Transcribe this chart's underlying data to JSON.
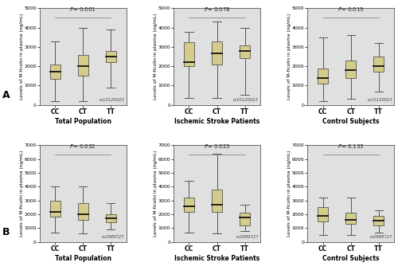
{
  "fig_facecolor": "#ffffff",
  "background_color": "#e0e0e0",
  "box_color": "#d4cc8a",
  "box_edge_color": "#555555",
  "median_color": "#111111",
  "whisker_color": "#555555",
  "rows": [
    {
      "row_label": "A",
      "p_values": [
        "P = 0.001",
        "P = 0.078",
        "P = 0.019"
      ],
      "snp_label": "rs10120023",
      "titles": [
        "Total Population",
        "Ischemic Stroke Patients",
        "Control Subjects"
      ],
      "ylabel": "Levels of M-ficolin in plasma (ng/mL)",
      "ylim": [
        0,
        5000
      ],
      "yticks": [
        0,
        1000,
        2000,
        3000,
        4000,
        5000
      ],
      "yticklabels": [
        "0",
        "1000",
        "2000",
        "3000",
        "4000",
        "5000"
      ],
      "groups": [
        "CC",
        "CT",
        "TT"
      ],
      "boxes": [
        [
          {
            "whisker_low": 200,
            "q1": 1350,
            "median": 1700,
            "q3": 2100,
            "whisker_high": 3300
          },
          {
            "whisker_low": 200,
            "q1": 1500,
            "median": 2000,
            "q3": 2600,
            "whisker_high": 4000
          },
          {
            "whisker_low": 900,
            "q1": 2200,
            "median": 2500,
            "q3": 2800,
            "whisker_high": 3900
          }
        ],
        [
          {
            "whisker_low": 350,
            "q1": 2000,
            "median": 2200,
            "q3": 3250,
            "whisker_high": 3800
          },
          {
            "whisker_low": 350,
            "q1": 2100,
            "median": 2650,
            "q3": 3300,
            "whisker_high": 4300
          },
          {
            "whisker_low": 500,
            "q1": 2400,
            "median": 2800,
            "q3": 3100,
            "whisker_high": 4000
          }
        ],
        [
          {
            "whisker_low": 200,
            "q1": 1100,
            "median": 1400,
            "q3": 1900,
            "whisker_high": 3500
          },
          {
            "whisker_low": 300,
            "q1": 1400,
            "median": 1800,
            "q3": 2300,
            "whisker_high": 3600
          },
          {
            "whisker_low": 700,
            "q1": 1700,
            "median": 2000,
            "q3": 2500,
            "whisker_high": 3200
          }
        ]
      ]
    },
    {
      "row_label": "B",
      "p_values": [
        "P = 0.032",
        "P = 0.023",
        "P = 0.133"
      ],
      "snp_label": "rs2989727",
      "titles": [
        "Total Population",
        "Ischemic Stroke Patients",
        "Control Subjects"
      ],
      "ylabel": "Levels of M-ficolin in plasma (ng/mL)",
      "ylim": [
        0,
        7000
      ],
      "yticks": [
        0,
        1000,
        2000,
        3000,
        4000,
        5000,
        6000,
        7000
      ],
      "yticklabels": [
        "0",
        "1000",
        "2000",
        "3000",
        "4000",
        "5000",
        "6000",
        "7000"
      ],
      "groups": [
        "CC",
        "CT",
        "TT"
      ],
      "boxes": [
        [
          {
            "whisker_low": 700,
            "q1": 1800,
            "median": 2200,
            "q3": 3000,
            "whisker_high": 4000
          },
          {
            "whisker_low": 600,
            "q1": 1600,
            "median": 2000,
            "q3": 2800,
            "whisker_high": 4000
          },
          {
            "whisker_low": 900,
            "q1": 1400,
            "median": 1700,
            "q3": 2000,
            "whisker_high": 2800
          }
        ],
        [
          {
            "whisker_low": 700,
            "q1": 2200,
            "median": 2600,
            "q3": 3200,
            "whisker_high": 4400
          },
          {
            "whisker_low": 600,
            "q1": 2200,
            "median": 2700,
            "q3": 3800,
            "whisker_high": 6400
          },
          {
            "whisker_low": 800,
            "q1": 1200,
            "median": 1750,
            "q3": 2100,
            "whisker_high": 2700
          }
        ],
        [
          {
            "whisker_low": 500,
            "q1": 1500,
            "median": 1900,
            "q3": 2500,
            "whisker_high": 3200
          },
          {
            "whisker_low": 500,
            "q1": 1300,
            "median": 1600,
            "q3": 2100,
            "whisker_high": 3200
          },
          {
            "whisker_low": 700,
            "q1": 1200,
            "median": 1550,
            "q3": 1900,
            "whisker_high": 2300
          }
        ]
      ]
    }
  ]
}
